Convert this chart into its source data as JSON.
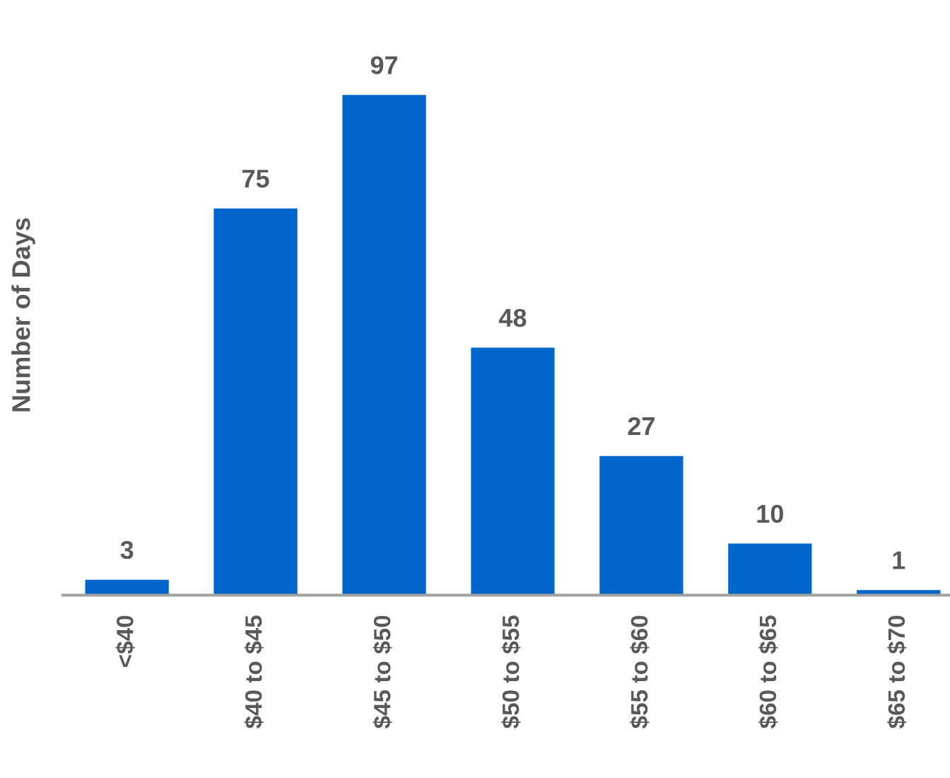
{
  "chart_data": {
    "type": "bar",
    "ylabel": "Number of Days",
    "categories": [
      "<$40",
      "$40 to $45",
      "$45 to $50",
      "$50 to $55",
      "$55 to $60",
      "$60 to $65",
      "$65 to $70"
    ],
    "values": [
      3,
      75,
      97,
      48,
      27,
      10,
      1
    ],
    "color": "#0066cc",
    "data_labels": true,
    "grid": false,
    "legend": false,
    "tick_labels": "x"
  }
}
